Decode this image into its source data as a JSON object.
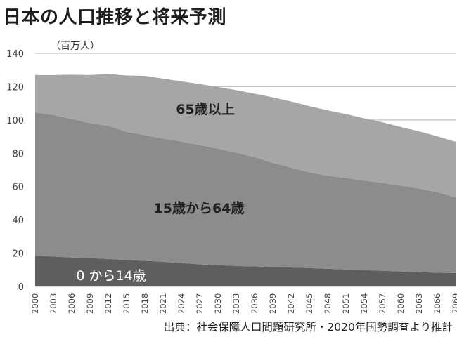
{
  "title": "日本の人口推移と将来予測",
  "source": "出典：社会保障人口問題研究所・2020年国勢調査より推計",
  "colors": {
    "age65plus": "#a6a6a6",
    "age15to64": "#8c8c8c",
    "age0to14": "#5e5e5e",
    "grid": "#b5b5b5"
  },
  "chart_data": {
    "type": "area",
    "stacked": true,
    "title": "日本の人口推移と将来予測",
    "ylabel": "（百万人）",
    "xlabel": "",
    "ylim": [
      0,
      140
    ],
    "yticks": [
      0,
      20,
      40,
      60,
      80,
      100,
      120,
      140
    ],
    "grid": true,
    "x": [
      2000,
      2003,
      2006,
      2009,
      2012,
      2015,
      2018,
      2021,
      2024,
      2027,
      2030,
      2033,
      2036,
      2039,
      2042,
      2045,
      2048,
      2051,
      2054,
      2057,
      2060,
      2063,
      2066,
      2069
    ],
    "series": [
      {
        "name": "0から14歳",
        "values": [
          18.5,
          18.0,
          17.4,
          17.0,
          16.5,
          15.9,
          15.4,
          14.8,
          14.1,
          13.3,
          12.8,
          12.3,
          12.0,
          11.7,
          11.4,
          11.0,
          10.6,
          10.2,
          9.8,
          9.4,
          9.0,
          8.6,
          8.3,
          8.0
        ]
      },
      {
        "name": "15歳から64歳",
        "values": [
          86.0,
          85.0,
          83.2,
          81.0,
          80.0,
          77.0,
          75.5,
          74.0,
          73.0,
          71.6,
          70.0,
          68.0,
          65.8,
          62.5,
          60.0,
          57.5,
          56.0,
          55.0,
          53.8,
          52.8,
          51.5,
          50.2,
          48.3,
          45.5
        ]
      },
      {
        "name": "65歳以上",
        "values": [
          22.5,
          24.0,
          26.6,
          29.0,
          31.1,
          33.8,
          35.6,
          36.0,
          36.1,
          36.7,
          37.0,
          37.6,
          38.0,
          39.4,
          39.7,
          39.8,
          39.2,
          38.3,
          37.4,
          36.4,
          35.3,
          34.4,
          33.6,
          33.4
        ]
      }
    ],
    "series_label_text": {
      "age65plus": "65歳以上",
      "age15to64": "15歳から64歳",
      "age0to14": "0 から14歳"
    },
    "xtick_labels": [
      "2000",
      "2003",
      "2006",
      "2009",
      "2012",
      "2015",
      "2018",
      "2021",
      "2024",
      "2027",
      "2030",
      "2033",
      "2036",
      "2039",
      "2042",
      "2045",
      "2048",
      "2051",
      "2054",
      "2057",
      "2060",
      "2063",
      "2066",
      "2069"
    ]
  }
}
